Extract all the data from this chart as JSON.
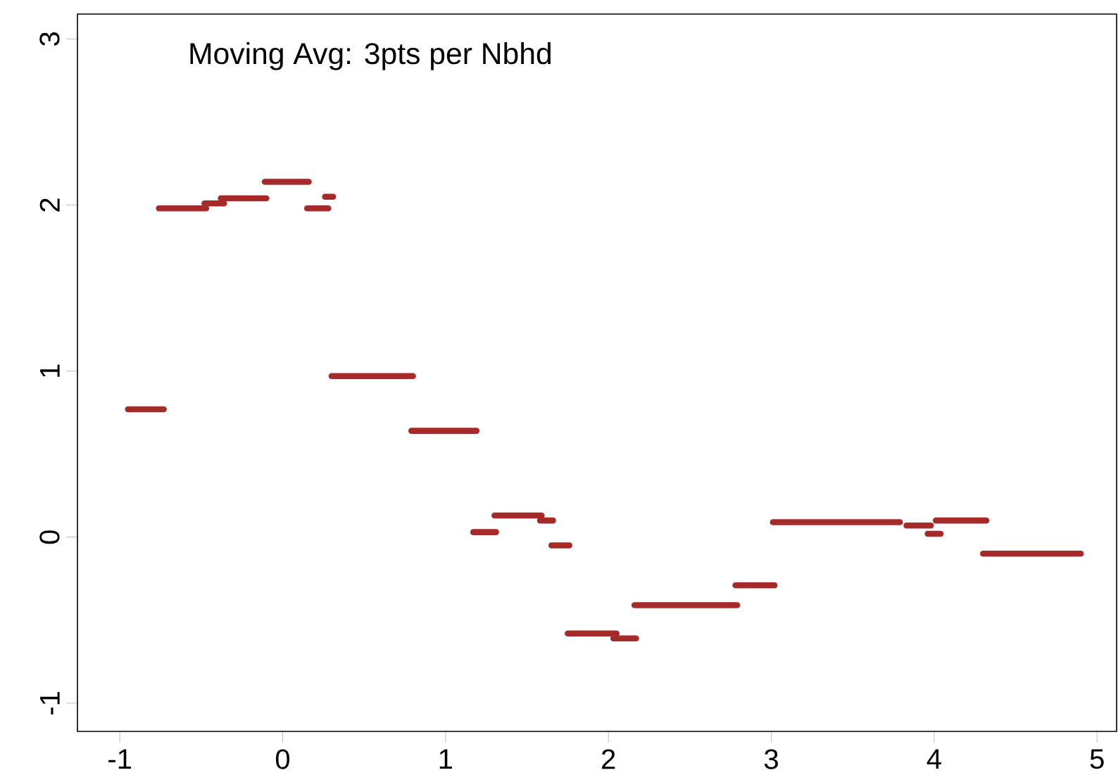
{
  "chart_data": {
    "type": "line",
    "annotations": [
      "Moving Avg: 3pts per Nbhd"
    ],
    "series": [
      {
        "color": "#a52a2a",
        "x": [
          -0.95,
          -0.73
        ],
        "values": [
          0.77,
          0.77
        ]
      },
      {
        "color": "#a52a2a",
        "x": [
          -0.76,
          -0.47
        ],
        "values": [
          1.98,
          1.98
        ]
      },
      {
        "color": "#a52a2a",
        "x": [
          -0.48,
          -0.36
        ],
        "values": [
          2.01,
          2.01
        ]
      },
      {
        "color": "#a52a2a",
        "x": [
          -0.38,
          -0.1
        ],
        "values": [
          2.04,
          2.04
        ]
      },
      {
        "color": "#a52a2a",
        "x": [
          -0.11,
          0.16
        ],
        "values": [
          2.14,
          2.14
        ]
      },
      {
        "color": "#a52a2a",
        "x": [
          0.15,
          0.28
        ],
        "values": [
          1.98,
          1.98
        ]
      },
      {
        "color": "#a52a2a",
        "x": [
          0.26,
          0.31
        ],
        "values": [
          2.05,
          2.05
        ]
      },
      {
        "color": "#a52a2a",
        "x": [
          0.3,
          0.8
        ],
        "values": [
          0.97,
          0.97
        ]
      },
      {
        "color": "#a52a2a",
        "x": [
          0.79,
          1.19
        ],
        "values": [
          0.64,
          0.64
        ]
      },
      {
        "color": "#a52a2a",
        "x": [
          1.17,
          1.31
        ],
        "values": [
          0.03,
          0.03
        ]
      },
      {
        "color": "#a52a2a",
        "x": [
          1.3,
          1.59
        ],
        "values": [
          0.13,
          0.13
        ]
      },
      {
        "color": "#a52a2a",
        "x": [
          1.58,
          1.66
        ],
        "values": [
          0.1,
          0.1
        ]
      },
      {
        "color": "#a52a2a",
        "x": [
          1.65,
          1.76
        ],
        "values": [
          -0.05,
          -0.05
        ]
      },
      {
        "color": "#a52a2a",
        "x": [
          1.75,
          2.05
        ],
        "values": [
          -0.58,
          -0.58
        ]
      },
      {
        "color": "#a52a2a",
        "x": [
          2.03,
          2.17
        ],
        "values": [
          -0.61,
          -0.61
        ]
      },
      {
        "color": "#a52a2a",
        "x": [
          2.16,
          2.79
        ],
        "values": [
          -0.41,
          -0.41
        ]
      },
      {
        "color": "#a52a2a",
        "x": [
          2.78,
          3.02
        ],
        "values": [
          -0.29,
          -0.29
        ]
      },
      {
        "color": "#a52a2a",
        "x": [
          3.01,
          3.79
        ],
        "values": [
          0.09,
          0.09
        ]
      },
      {
        "color": "#a52a2a",
        "x": [
          3.83,
          3.98
        ],
        "values": [
          0.07,
          0.07
        ]
      },
      {
        "color": "#a52a2a",
        "x": [
          3.96,
          4.04
        ],
        "values": [
          0.02,
          0.02
        ]
      },
      {
        "color": "#a52a2a",
        "x": [
          4.01,
          4.32
        ],
        "values": [
          0.1,
          0.1
        ]
      },
      {
        "color": "#a52a2a",
        "x": [
          4.3,
          4.9
        ],
        "values": [
          -0.1,
          -0.1
        ]
      }
    ],
    "xlim": [
      -1.26,
      5.12
    ],
    "ylim": [
      -1.17,
      3.15
    ],
    "xticks": [
      -1,
      0,
      1,
      2,
      3,
      4,
      5
    ],
    "yticks": [
      -1,
      0,
      1,
      2,
      3
    ],
    "grid": false,
    "marker": "none",
    "line_style": "solid"
  }
}
